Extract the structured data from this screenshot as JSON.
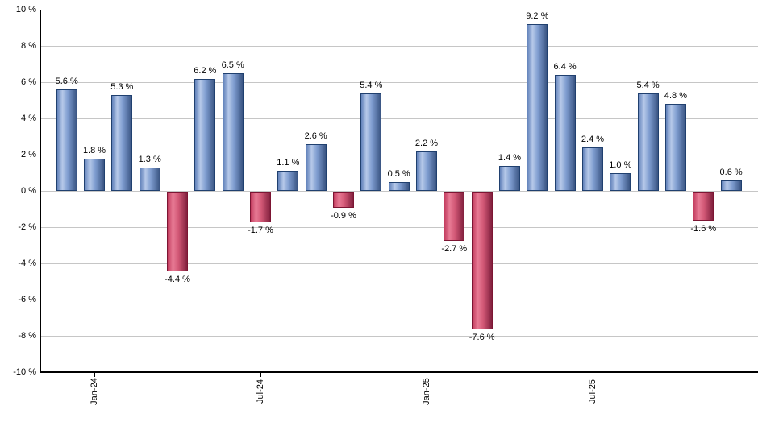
{
  "chart_data": {
    "type": "bar",
    "title": "",
    "xlabel": "",
    "ylabel": "",
    "unit_suffix": " %",
    "ylim": [
      -10,
      10
    ],
    "grid": "horizontal",
    "legend": "none",
    "y_axis": {
      "ticks": [
        {
          "value": 10,
          "label": "10 %"
        },
        {
          "value": 8,
          "label": "8 %"
        },
        {
          "value": 6,
          "label": "6 %"
        },
        {
          "value": 4,
          "label": "4 %"
        },
        {
          "value": 2,
          "label": "2 %"
        },
        {
          "value": 0,
          "label": "0 %"
        },
        {
          "value": -2,
          "label": "-2 %"
        },
        {
          "value": -4,
          "label": "-4 %"
        },
        {
          "value": -6,
          "label": "-6 %"
        },
        {
          "value": -8,
          "label": "-8 %"
        },
        {
          "value": -10,
          "label": "-10 %"
        }
      ]
    },
    "x_axis": {
      "ticks": [
        {
          "bar_index": 1,
          "label": "Jan-24"
        },
        {
          "bar_index": 7,
          "label": "Jul-24"
        },
        {
          "bar_index": 13,
          "label": "Jan-25"
        },
        {
          "bar_index": 19,
          "label": "Jul-25"
        }
      ]
    },
    "bars": [
      {
        "value": 5.6,
        "label": "5.6 %"
      },
      {
        "value": 1.8,
        "label": "1.8 %"
      },
      {
        "value": 5.3,
        "label": "5.3 %"
      },
      {
        "value": 1.3,
        "label": "1.3 %"
      },
      {
        "value": -4.4,
        "label": "-4.4 %"
      },
      {
        "value": 6.2,
        "label": "6.2 %"
      },
      {
        "value": 6.5,
        "label": "6.5 %"
      },
      {
        "value": -1.7,
        "label": "-1.7 %"
      },
      {
        "value": 1.1,
        "label": "1.1 %"
      },
      {
        "value": 2.6,
        "label": "2.6 %"
      },
      {
        "value": -0.9,
        "label": "-0.9 %"
      },
      {
        "value": 5.4,
        "label": "5.4 %"
      },
      {
        "value": 0.5,
        "label": "0.5 %"
      },
      {
        "value": 2.2,
        "label": "2.2 %"
      },
      {
        "value": -2.7,
        "label": "-2.7 %"
      },
      {
        "value": -7.6,
        "label": "-7.6 %"
      },
      {
        "value": 1.4,
        "label": "1.4 %"
      },
      {
        "value": 9.2,
        "label": "9.2 %"
      },
      {
        "value": 6.4,
        "label": "6.4 %"
      },
      {
        "value": 2.4,
        "label": "2.4 %"
      },
      {
        "value": 1.0,
        "label": "1.0 %"
      },
      {
        "value": 5.4,
        "label": "5.4 %"
      },
      {
        "value": 4.8,
        "label": "4.8 %"
      },
      {
        "value": -1.6,
        "label": "-1.6 %"
      },
      {
        "value": 0.6,
        "label": "0.6 %"
      }
    ],
    "colors": {
      "positive_edge_left": "#6282ba",
      "positive_highlight": "#b6c9e9",
      "positive_mid": "#7e9ccf",
      "positive_edge_right": "#3a5583",
      "positive_border": "#20406f",
      "negative_edge_left": "#c23c5e",
      "negative_highlight": "#e87b95",
      "negative_mid": "#d25876",
      "negative_edge_right": "#82203e",
      "negative_border": "#7c1533",
      "gridline": "#c6c6c6",
      "axis": "#000000",
      "label_text": "#000000",
      "background": "#ffffff"
    }
  }
}
